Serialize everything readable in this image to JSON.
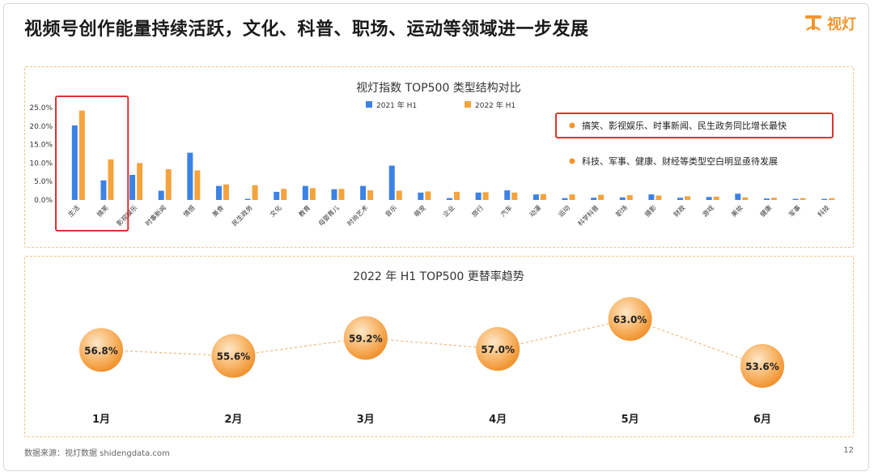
{
  "header": {
    "title": "视频号创作能量持续活跃，文化、科普、职场、运动等领域进一步发展",
    "logo_text": "视灯"
  },
  "colors": {
    "series_2021": "#3b82e6",
    "series_2022": "#f5a33c",
    "accent": "#f0962e",
    "highlight": "#e03030"
  },
  "chart_data": [
    {
      "type": "bar",
      "title": "视灯指数 TOP500 类型结构对比",
      "categories": [
        "生活",
        "搞笑",
        "影视娱乐",
        "时事新闻",
        "情感",
        "美食",
        "民生政务",
        "文化",
        "教育",
        "母婴育儿",
        "时尚艺术",
        "音乐",
        "萌宠",
        "企业",
        "旅行",
        "汽车",
        "动漫",
        "运动",
        "科学科普",
        "职场",
        "摄影",
        "财政",
        "游戏",
        "美妆",
        "健康",
        "军事",
        "科技"
      ],
      "series": [
        {
          "name": "2021 年 H1",
          "values": [
            20.2,
            5.3,
            6.8,
            2.5,
            12.8,
            3.8,
            0.3,
            2.2,
            3.8,
            2.9,
            3.8,
            9.3,
            2.0,
            0.5,
            2.0,
            2.6,
            1.5,
            0.5,
            0.6,
            0.7,
            1.5,
            0.6,
            0.8,
            1.7,
            0.4,
            0.3,
            0.3
          ]
        },
        {
          "name": "2022 年 H1",
          "values": [
            24.2,
            11.0,
            10.0,
            8.3,
            8.0,
            4.2,
            4.0,
            3.0,
            3.2,
            3.0,
            2.6,
            2.5,
            2.3,
            2.2,
            2.1,
            2.0,
            1.6,
            1.5,
            1.4,
            1.3,
            1.2,
            1.0,
            0.9,
            0.7,
            0.6,
            0.5,
            0.5
          ]
        }
      ],
      "yticks": [
        "0.0%",
        "5.0%",
        "10.0%",
        "15.0%",
        "20.0%",
        "25.0%"
      ],
      "ylim": [
        0,
        25
      ],
      "highlighted_categories": [
        "生活",
        "搞笑"
      ],
      "legend_position": "top-center",
      "annotations": [
        {
          "text": "搞笑、影视娱乐、时事新闻、民生政务同比增长最快",
          "highlighted": true
        },
        {
          "text": "科技、军事、健康、财经等类型空白明显亟待发展",
          "highlighted": false
        }
      ]
    },
    {
      "type": "line",
      "title": "2022 年 H1 TOP500 更替率趋势",
      "x": [
        "1月",
        "2月",
        "3月",
        "4月",
        "5月",
        "6月"
      ],
      "values": [
        56.8,
        55.6,
        59.2,
        57.0,
        63.0,
        53.6
      ],
      "labels": [
        "56.8%",
        "55.6%",
        "59.2%",
        "57.0%",
        "63.0%",
        "53.6%"
      ]
    }
  ],
  "footer": {
    "source": "数据来源：视灯数据 shidengdata.com",
    "page_number": "12"
  }
}
